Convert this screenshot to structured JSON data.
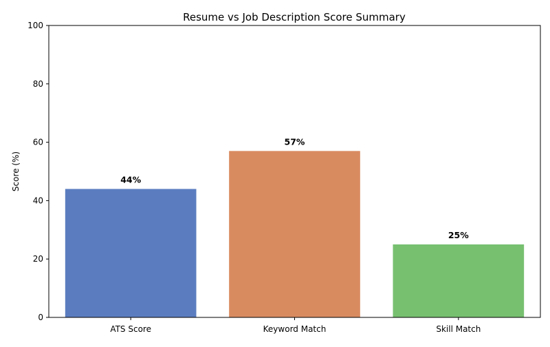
{
  "chart_data": {
    "type": "bar",
    "title": "Resume vs Job Description Score Summary",
    "xlabel": "",
    "ylabel": "Score (%)",
    "ylim": [
      0,
      100
    ],
    "yticks": [
      0,
      20,
      40,
      60,
      80,
      100
    ],
    "categories": [
      "ATS Score",
      "Keyword Match",
      "Skill Match"
    ],
    "values": [
      44,
      57,
      25
    ],
    "data_labels": [
      "44%",
      "57%",
      "25%"
    ],
    "colors": [
      "#5b7dc0",
      "#d98b60",
      "#77c070"
    ],
    "grid": false,
    "legend": "none"
  }
}
